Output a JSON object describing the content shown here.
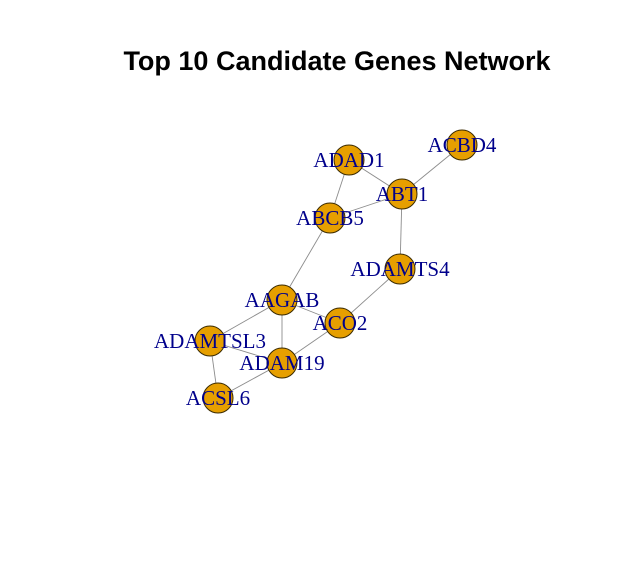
{
  "title": "Top 10 Candidate Genes Network",
  "colors": {
    "node_fill": "#E69F00",
    "label": "#00008B",
    "edge": "#8c8c8c",
    "background": "#ffffff"
  },
  "nodes": [
    {
      "id": "ADAD1",
      "label": "ADAD1"
    },
    {
      "id": "ACBD4",
      "label": "ACBD4"
    },
    {
      "id": "ABT1",
      "label": "ABT1"
    },
    {
      "id": "ABCB5",
      "label": "ABCB5"
    },
    {
      "id": "ADAMTS4",
      "label": "ADAMTS4"
    },
    {
      "id": "AAGAB",
      "label": "AAGAB"
    },
    {
      "id": "ACO2",
      "label": "ACO2"
    },
    {
      "id": "ADAMTSL3",
      "label": "ADAMTSL3"
    },
    {
      "id": "ADAM19",
      "label": "ADAM19"
    },
    {
      "id": "ACSL6",
      "label": "ACSL6"
    }
  ],
  "edges": [
    [
      "ADAD1",
      "ABT1"
    ],
    [
      "ADAD1",
      "ABCB5"
    ],
    [
      "ABCB5",
      "ABT1"
    ],
    [
      "ABT1",
      "ACBD4"
    ],
    [
      "ABT1",
      "ADAMTS4"
    ],
    [
      "ABCB5",
      "AAGAB"
    ],
    [
      "ADAMTS4",
      "ACO2"
    ],
    [
      "AAGAB",
      "ACO2"
    ],
    [
      "AAGAB",
      "ADAMTSL3"
    ],
    [
      "AAGAB",
      "ADAM19"
    ],
    [
      "ADAMTSL3",
      "ACSL6"
    ],
    [
      "ADAM19",
      "ACSL6"
    ],
    [
      "ACO2",
      "ADAM19"
    ],
    [
      "ADAMTSL3",
      "ADAM19"
    ]
  ]
}
